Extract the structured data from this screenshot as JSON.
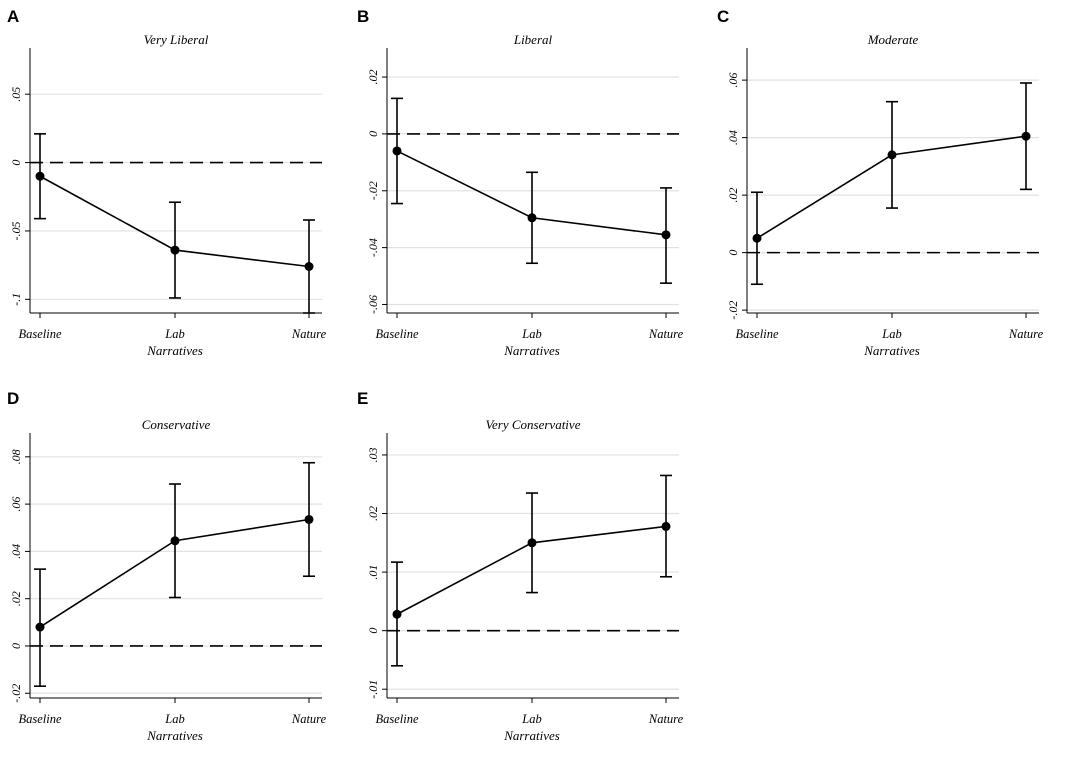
{
  "chart_data": [
    {
      "letter": "A",
      "type": "line",
      "title": "Very Liberal",
      "xlabel": "Narratives",
      "categories": [
        "Baseline",
        "Lab",
        "Nature"
      ],
      "values": [
        -0.01,
        -0.064,
        -0.076
      ],
      "ci_low": [
        -0.041,
        -0.099,
        -0.11
      ],
      "ci_high": [
        0.021,
        -0.029,
        -0.042
      ],
      "yticks": [
        0.05,
        0,
        -0.05,
        -0.1
      ],
      "ytick_labels": [
        ".05",
        "0",
        "-.05",
        "-.1"
      ],
      "ylim": [
        -0.11,
        0.075
      ],
      "reference_line": 0
    },
    {
      "letter": "B",
      "type": "line",
      "title": "Liberal",
      "xlabel": "Narratives",
      "categories": [
        "Baseline",
        "Lab",
        "Nature"
      ],
      "values": [
        -0.006,
        -0.0295,
        -0.0355
      ],
      "ci_low": [
        -0.0245,
        -0.0455,
        -0.0525
      ],
      "ci_high": [
        0.0125,
        -0.0135,
        -0.019
      ],
      "yticks": [
        0.02,
        0,
        -0.02,
        -0.04,
        -0.06
      ],
      "ytick_labels": [
        ".02",
        "0",
        "-.02",
        "-.04",
        "-.06"
      ],
      "ylim": [
        -0.063,
        0.026
      ],
      "reference_line": 0
    },
    {
      "letter": "C",
      "type": "line",
      "title": "Moderate",
      "xlabel": "Narratives",
      "categories": [
        "Baseline",
        "Lab",
        "Nature"
      ],
      "values": [
        0.005,
        0.034,
        0.0405
      ],
      "ci_low": [
        -0.011,
        0.0155,
        0.022
      ],
      "ci_high": [
        0.021,
        0.0525,
        0.059
      ],
      "yticks": [
        0.06,
        0.04,
        0.02,
        0,
        -0.02
      ],
      "ytick_labels": [
        ".06",
        ".04",
        ".02",
        "0",
        "-.02"
      ],
      "ylim": [
        -0.021,
        0.067
      ],
      "reference_line": 0
    },
    {
      "letter": "D",
      "type": "line",
      "title": "Conservative",
      "xlabel": "Narratives",
      "categories": [
        "Baseline",
        "Lab",
        "Nature"
      ],
      "values": [
        0.008,
        0.0445,
        0.0535
      ],
      "ci_low": [
        -0.017,
        0.0205,
        0.0295
      ],
      "ci_high": [
        0.0325,
        0.0685,
        0.0775
      ],
      "yticks": [
        0.08,
        0.06,
        0.04,
        0.02,
        0,
        -0.02
      ],
      "ytick_labels": [
        ".08",
        ".06",
        ".04",
        ".02",
        "0",
        "-.02"
      ],
      "ylim": [
        -0.022,
        0.085
      ],
      "reference_line": 0
    },
    {
      "letter": "E",
      "type": "line",
      "title": "Very Conservative",
      "xlabel": "Narratives",
      "categories": [
        "Baseline",
        "Lab",
        "Nature"
      ],
      "values": [
        0.0028,
        0.015,
        0.0178
      ],
      "ci_low": [
        -0.006,
        0.0065,
        0.0092
      ],
      "ci_high": [
        0.0117,
        0.0235,
        0.0265
      ],
      "yticks": [
        0.03,
        0.02,
        0.01,
        0,
        -0.01
      ],
      "ytick_labels": [
        ".03",
        ".02",
        ".01",
        "0",
        "-.01"
      ],
      "ylim": [
        -0.0115,
        0.0317
      ],
      "reference_line": 0
    }
  ]
}
